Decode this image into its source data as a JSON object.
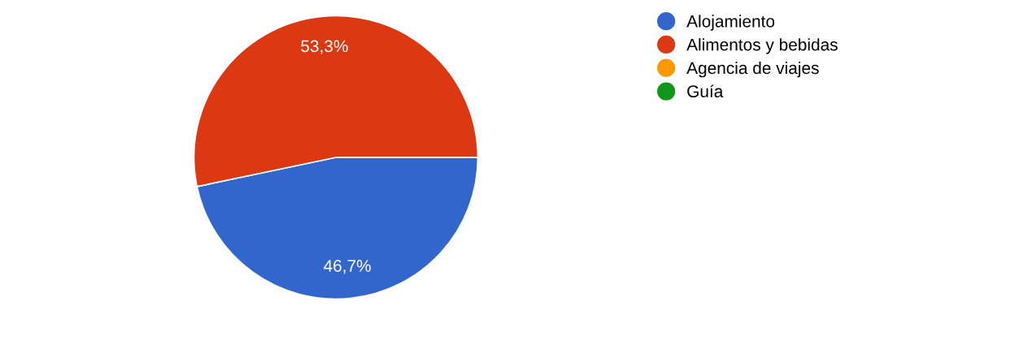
{
  "chart_data": {
    "type": "pie",
    "categories": [
      "Alojamiento",
      "Alimentos y bebidas",
      "Agencia de viajes",
      "Guía"
    ],
    "values": [
      46.7,
      53.3,
      0,
      0
    ],
    "colors": [
      "#3366cc",
      "#dc3912",
      "#ff9900",
      "#109618"
    ],
    "value_labels": [
      "46,7%",
      "53,3%",
      null,
      null
    ],
    "legend": "top right"
  }
}
